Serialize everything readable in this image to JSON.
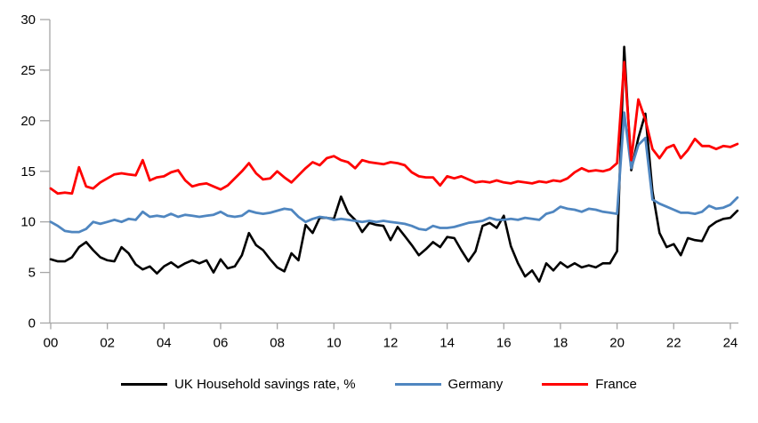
{
  "chart_data": {
    "type": "line",
    "title": "",
    "xlabel": "",
    "ylabel": "",
    "frequency": "quarterly",
    "x_start": "2000Q1",
    "x_end": "2024Q2",
    "ylim": [
      0,
      30
    ],
    "y_ticks": [
      0,
      5,
      10,
      15,
      20,
      25,
      30
    ],
    "x_tick_labels": [
      "00",
      "02",
      "04",
      "06",
      "08",
      "10",
      "12",
      "14",
      "16",
      "18",
      "20",
      "22",
      "24"
    ],
    "grid": "off",
    "legend_position": "bottom",
    "axis_color": "#A6A6A6",
    "series": [
      {
        "name": "UK Household savings rate, %",
        "color": "#000000",
        "values": [
          6.3,
          6.1,
          6.1,
          6.5,
          7.5,
          8.0,
          7.2,
          6.5,
          6.2,
          6.1,
          7.5,
          6.9,
          5.8,
          5.3,
          5.6,
          4.9,
          5.6,
          6.0,
          5.5,
          5.9,
          6.2,
          5.9,
          6.2,
          5.0,
          6.3,
          5.4,
          5.6,
          6.7,
          8.9,
          7.7,
          7.2,
          6.3,
          5.5,
          5.1,
          6.9,
          6.2,
          9.7,
          8.9,
          10.4,
          10.4,
          10.3,
          12.5,
          10.9,
          10.2,
          9.0,
          9.9,
          9.7,
          9.6,
          8.2,
          9.5,
          8.6,
          7.7,
          6.7,
          7.3,
          8.0,
          7.5,
          8.5,
          8.4,
          7.2,
          6.1,
          7.1,
          9.6,
          9.9,
          9.4,
          10.6,
          7.6,
          5.9,
          4.6,
          5.2,
          4.1,
          5.9,
          5.2,
          6.0,
          5.5,
          5.9,
          5.5,
          5.7,
          5.5,
          5.9,
          5.9,
          7.1,
          27.3,
          15.1,
          18.3,
          20.7,
          13.0,
          8.9,
          7.5,
          7.8,
          6.7,
          8.4,
          8.2,
          8.1,
          9.5,
          10.0,
          10.3,
          10.4,
          11.1
        ]
      },
      {
        "name": "Germany",
        "color": "#4F86C0",
        "values": [
          10.0,
          9.6,
          9.1,
          9.0,
          9.0,
          9.3,
          10.0,
          9.8,
          10.0,
          10.2,
          10.0,
          10.3,
          10.2,
          11.0,
          10.5,
          10.6,
          10.5,
          10.8,
          10.5,
          10.7,
          10.6,
          10.5,
          10.6,
          10.7,
          11.0,
          10.6,
          10.5,
          10.6,
          11.1,
          10.9,
          10.8,
          10.9,
          11.1,
          11.3,
          11.2,
          10.5,
          10.0,
          10.3,
          10.5,
          10.4,
          10.2,
          10.3,
          10.2,
          10.1,
          10.0,
          10.1,
          10.0,
          10.1,
          10.0,
          9.9,
          9.8,
          9.6,
          9.3,
          9.2,
          9.6,
          9.4,
          9.4,
          9.5,
          9.7,
          9.9,
          10.0,
          10.1,
          10.4,
          10.2,
          10.2,
          10.3,
          10.2,
          10.4,
          10.3,
          10.2,
          10.8,
          11.0,
          11.5,
          11.3,
          11.2,
          11.0,
          11.3,
          11.2,
          11.0,
          10.9,
          10.8,
          20.8,
          15.3,
          17.6,
          18.3,
          12.2,
          11.8,
          11.5,
          11.2,
          10.9,
          10.9,
          10.8,
          11.0,
          11.6,
          11.3,
          11.4,
          11.7,
          12.4
        ]
      },
      {
        "name": "France",
        "color": "#FF0000",
        "values": [
          13.3,
          12.8,
          12.9,
          12.8,
          15.4,
          13.5,
          13.3,
          13.9,
          14.3,
          14.7,
          14.8,
          14.7,
          14.6,
          16.1,
          14.1,
          14.4,
          14.5,
          14.9,
          15.1,
          14.1,
          13.5,
          13.7,
          13.8,
          13.5,
          13.2,
          13.6,
          14.3,
          15.0,
          15.8,
          14.8,
          14.2,
          14.3,
          15.0,
          14.4,
          13.9,
          14.6,
          15.3,
          15.9,
          15.6,
          16.3,
          16.5,
          16.1,
          15.9,
          15.3,
          16.1,
          15.9,
          15.8,
          15.7,
          15.9,
          15.8,
          15.6,
          14.9,
          14.5,
          14.4,
          14.4,
          13.6,
          14.5,
          14.3,
          14.5,
          14.2,
          13.9,
          14.0,
          13.9,
          14.1,
          13.9,
          13.8,
          14.0,
          13.9,
          13.8,
          14.0,
          13.9,
          14.1,
          14.0,
          14.3,
          14.9,
          15.3,
          15.0,
          15.1,
          15.0,
          15.2,
          15.8,
          25.8,
          16.1,
          22.1,
          20.1,
          17.2,
          16.3,
          17.3,
          17.6,
          16.3,
          17.1,
          18.2,
          17.5,
          17.5,
          17.2,
          17.5,
          17.4,
          17.7
        ]
      }
    ]
  },
  "legend": {
    "items": [
      {
        "label": "UK Household savings rate, %"
      },
      {
        "label": "Germany"
      },
      {
        "label": "France"
      }
    ]
  }
}
